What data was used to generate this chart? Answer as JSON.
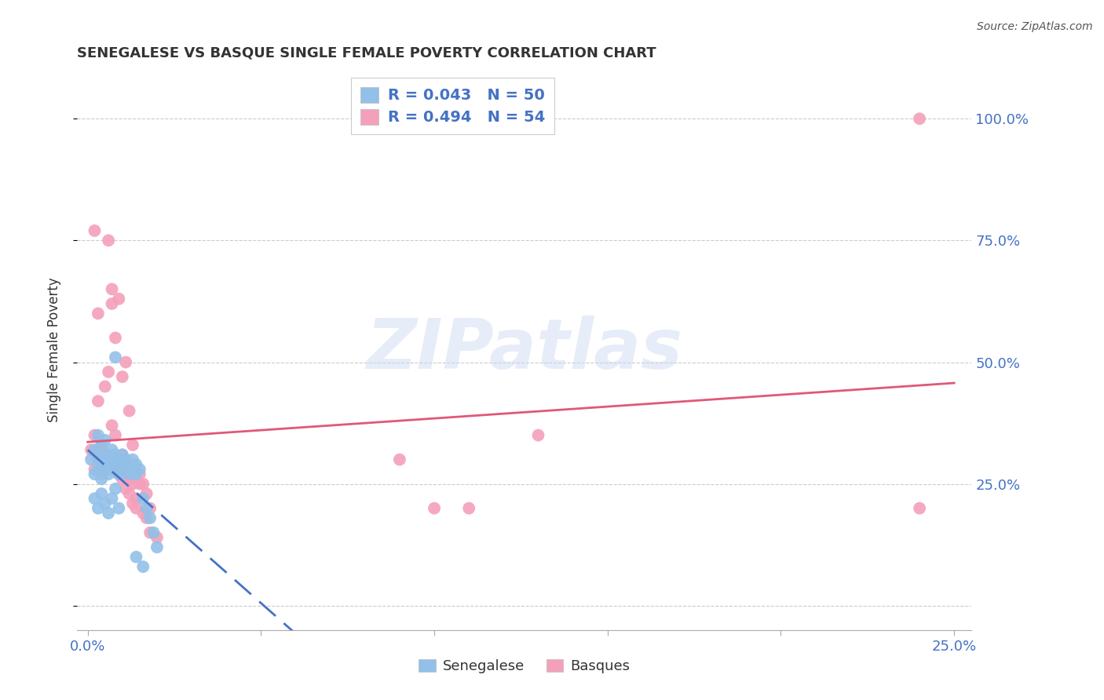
{
  "title": "SENEGALESE VS BASQUE SINGLE FEMALE POVERTY CORRELATION CHART",
  "source": "Source: ZipAtlas.com",
  "ylabel": "Single Female Poverty",
  "watermark": "ZIPatlas",
  "legend_line1": "R = 0.043   N = 50",
  "legend_line2": "R = 0.494   N = 54",
  "blue_scatter_color": "#92C0E8",
  "pink_scatter_color": "#F4A0BA",
  "blue_line_color": "#4472C4",
  "pink_line_color": "#E05878",
  "background_color": "#FFFFFF",
  "grid_color": "#CCCCCC",
  "axis_label_color": "#4472C4",
  "title_color": "#333333",
  "xlim": [
    -0.003,
    0.255
  ],
  "ylim": [
    -0.05,
    1.1
  ],
  "x_ticks": [
    0.0,
    0.05,
    0.1,
    0.15,
    0.2,
    0.25
  ],
  "y_ticks": [
    0.0,
    0.25,
    0.5,
    0.75,
    1.0
  ],
  "y_tick_labels": [
    "",
    "25.0%",
    "50.0%",
    "75.0%",
    "100.0%"
  ],
  "senegalese_x": [
    0.001,
    0.002,
    0.002,
    0.003,
    0.003,
    0.003,
    0.004,
    0.004,
    0.004,
    0.005,
    0.005,
    0.005,
    0.006,
    0.006,
    0.006,
    0.007,
    0.007,
    0.007,
    0.008,
    0.008,
    0.008,
    0.009,
    0.009,
    0.009,
    0.01,
    0.01,
    0.011,
    0.011,
    0.012,
    0.012,
    0.013,
    0.013,
    0.014,
    0.014,
    0.015,
    0.016,
    0.017,
    0.018,
    0.019,
    0.02,
    0.002,
    0.003,
    0.004,
    0.005,
    0.006,
    0.007,
    0.008,
    0.009,
    0.014,
    0.016
  ],
  "senegalese_y": [
    0.3,
    0.32,
    0.27,
    0.31,
    0.28,
    0.35,
    0.29,
    0.33,
    0.26,
    0.3,
    0.28,
    0.34,
    0.29,
    0.31,
    0.27,
    0.3,
    0.28,
    0.32,
    0.29,
    0.31,
    0.51,
    0.28,
    0.3,
    0.27,
    0.29,
    0.31,
    0.28,
    0.3,
    0.27,
    0.29,
    0.28,
    0.3,
    0.27,
    0.29,
    0.28,
    0.22,
    0.2,
    0.18,
    0.15,
    0.12,
    0.22,
    0.2,
    0.23,
    0.21,
    0.19,
    0.22,
    0.24,
    0.2,
    0.1,
    0.08
  ],
  "basque_x": [
    0.001,
    0.002,
    0.002,
    0.003,
    0.003,
    0.004,
    0.004,
    0.005,
    0.005,
    0.006,
    0.006,
    0.007,
    0.007,
    0.008,
    0.008,
    0.009,
    0.009,
    0.01,
    0.01,
    0.011,
    0.011,
    0.012,
    0.012,
    0.013,
    0.013,
    0.014,
    0.015,
    0.016,
    0.017,
    0.018,
    0.002,
    0.003,
    0.004,
    0.005,
    0.006,
    0.007,
    0.008,
    0.009,
    0.01,
    0.011,
    0.012,
    0.013,
    0.014,
    0.015,
    0.016,
    0.017,
    0.018,
    0.02,
    0.1,
    0.11,
    0.13,
    0.24,
    0.24,
    0.09
  ],
  "basque_y": [
    0.32,
    0.35,
    0.28,
    0.3,
    0.42,
    0.33,
    0.27,
    0.31,
    0.45,
    0.29,
    0.48,
    0.37,
    0.62,
    0.3,
    0.55,
    0.28,
    0.63,
    0.31,
    0.47,
    0.29,
    0.5,
    0.4,
    0.26,
    0.25,
    0.33,
    0.22,
    0.27,
    0.25,
    0.23,
    0.2,
    0.77,
    0.6,
    0.3,
    0.29,
    0.75,
    0.65,
    0.35,
    0.27,
    0.26,
    0.24,
    0.23,
    0.21,
    0.2,
    0.25,
    0.19,
    0.18,
    0.15,
    0.14,
    0.2,
    0.2,
    0.35,
    0.2,
    1.0,
    0.3
  ]
}
